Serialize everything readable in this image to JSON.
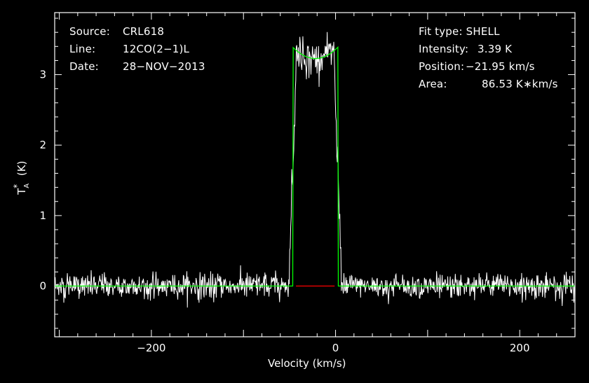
{
  "chart_data": {
    "type": "line",
    "xlabel": "Velocity (km/s)",
    "ylabel": "T",
    "ylabel_sub": "A",
    "ylabel_sup": "*",
    "ylabel_unit": " (K)",
    "xlim": [
      -305,
      260
    ],
    "ylim": [
      -0.72,
      3.88
    ],
    "xticks": [
      -200,
      0,
      200
    ],
    "xtick_labels": [
      "−200",
      "0",
      "200"
    ],
    "yticks": [
      0,
      1,
      2,
      3
    ],
    "ytick_labels": [
      "0",
      "1",
      "2",
      "3"
    ],
    "grid": false,
    "background": "#000000",
    "colors": {
      "data": "#ffffff",
      "fit": "#00ff00",
      "baseline_fit_window": "#ff0000",
      "axes": "#ffffff"
    },
    "series": [
      {
        "kind": "spectrum",
        "x_range": [
          -305,
          260
        ],
        "noise_rms": 0.09,
        "profile": "shell",
        "peak": 3.39,
        "peak_observed": 3.65,
        "center": -21.95,
        "half_width": 24.5,
        "horn_fraction": 0.05
      },
      {
        "kind": "fit",
        "profile": "shell",
        "intensity": 3.39,
        "center": -21.95,
        "half_width": 24.5,
        "horn_fraction": 0.05,
        "fit_window": [
          -43,
          -1
        ]
      }
    ]
  },
  "header_left": {
    "source_label": "Source:",
    "source_value": "CRL618",
    "line_label": "Line:",
    "line_value": "12CO(2−1)L",
    "date_label": "Date:",
    "date_value": "28−NOV−2013"
  },
  "header_right": {
    "fit_type": "Fit type: SHELL",
    "intensity_label": "Intensity:",
    "intensity_value": "3.39 K",
    "position_label": "Position:",
    "position_value": "−21.95 km/s",
    "area_label": "Area:",
    "area_value": "86.53 K∗km/s"
  }
}
